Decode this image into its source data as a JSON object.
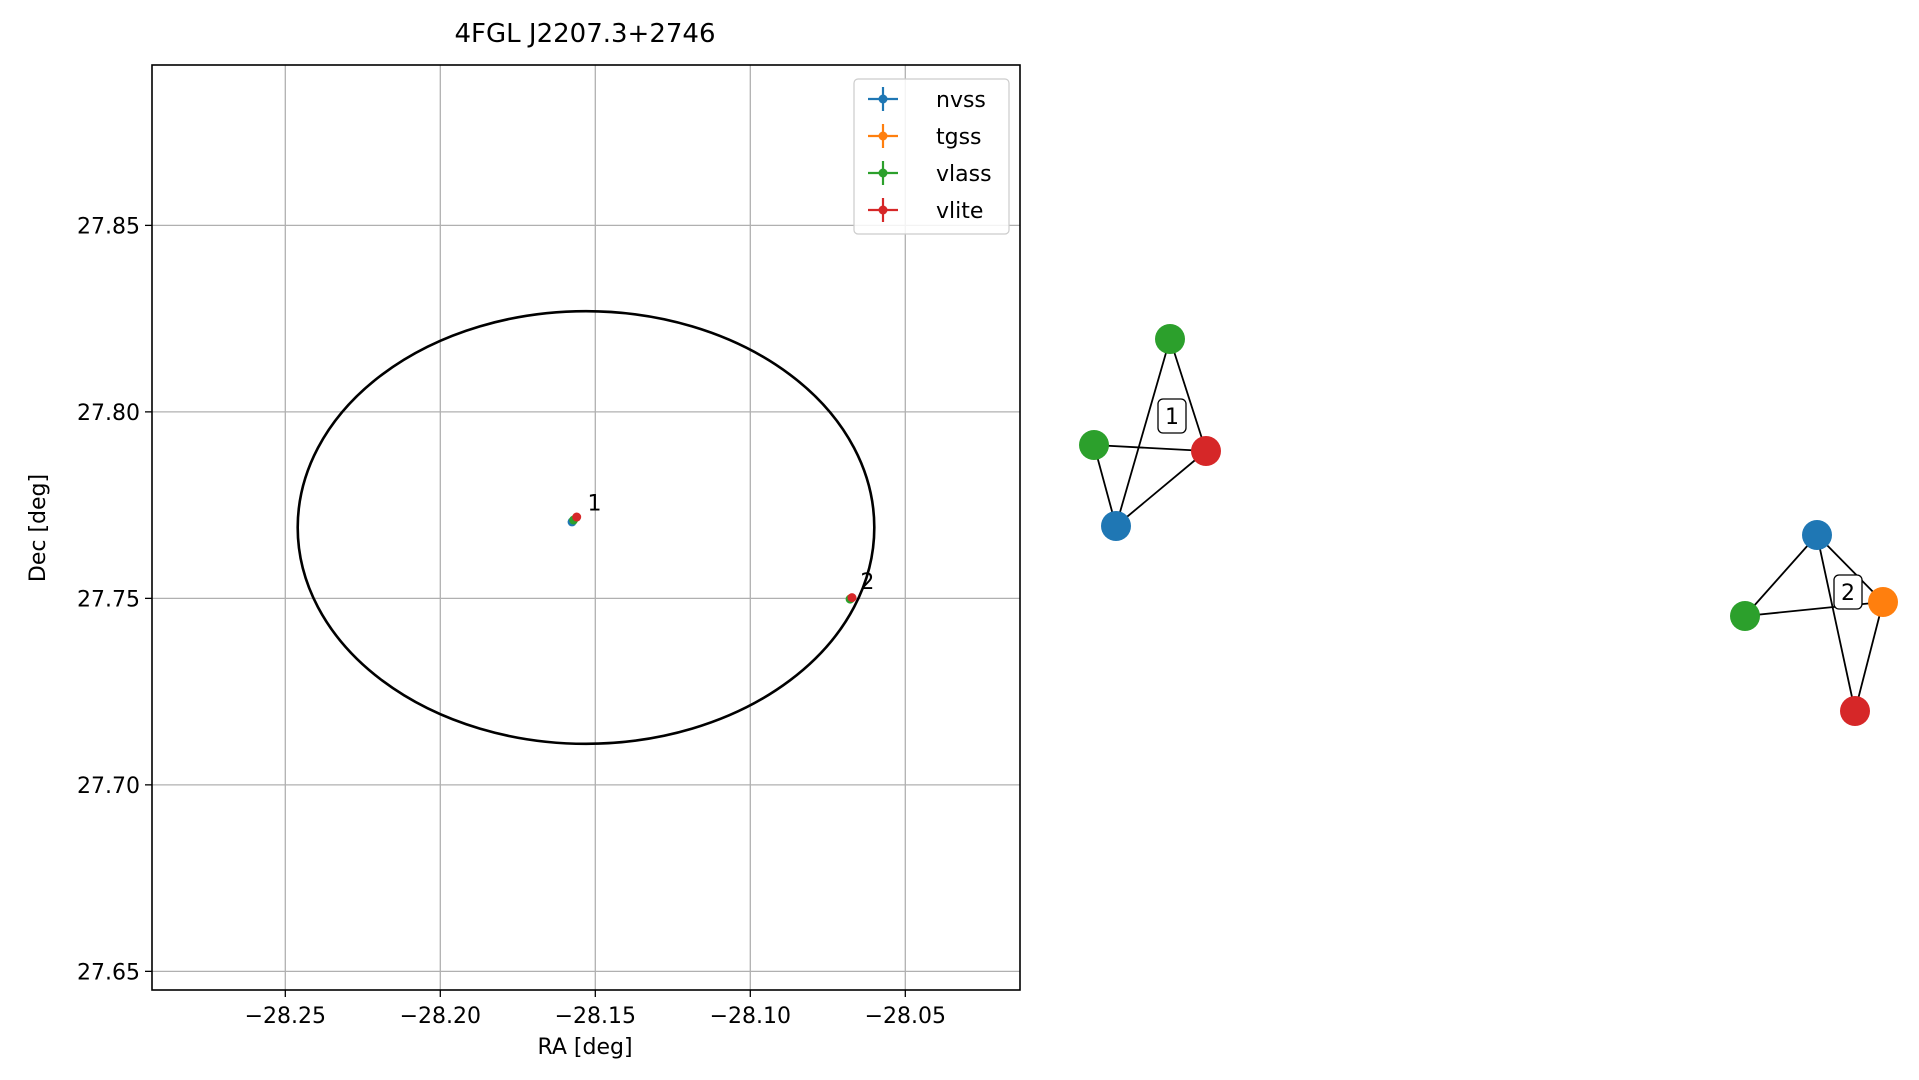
{
  "chart_data": {
    "type": "scatter",
    "title": "4FGL J2207.3+2746",
    "xlabel": "RA [deg]",
    "ylabel": "Dec [deg]",
    "xlim": [
      -28.293,
      -28.013
    ],
    "ylim": [
      27.645,
      27.893
    ],
    "x_ticks": [
      -28.25,
      -28.2,
      -28.15,
      -28.1,
      -28.05
    ],
    "x_tick_labels": [
      "−28.25",
      "−28.20",
      "−28.15",
      "−28.10",
      "−28.05"
    ],
    "y_ticks": [
      27.65,
      27.7,
      27.75,
      27.8,
      27.85
    ],
    "y_tick_labels": [
      "27.65",
      "27.70",
      "27.75",
      "27.80",
      "27.85"
    ],
    "grid": true,
    "legend_position": "top-right",
    "series": [
      {
        "name": "nvss",
        "color": "#1f77b4",
        "points": [
          {
            "x": -28.1575,
            "y": 27.7705
          }
        ]
      },
      {
        "name": "tgss",
        "color": "#ff7f0e",
        "points": [
          {
            "x": -28.0675,
            "y": 27.75
          }
        ]
      },
      {
        "name": "vlass",
        "color": "#2ca02c",
        "points": [
          {
            "x": -28.157,
            "y": 27.771
          },
          {
            "x": -28.0678,
            "y": 27.7498
          }
        ]
      },
      {
        "name": "vlite",
        "color": "#d62728",
        "points": [
          {
            "x": -28.156,
            "y": 27.7718
          },
          {
            "x": -28.0672,
            "y": 27.7502
          }
        ]
      }
    ],
    "ellipse": {
      "center": [
        -28.153,
        27.769
      ],
      "ra_halfwidth": 0.093,
      "dec_halfheight": 0.058,
      "color": "#000000"
    },
    "annotations": [
      {
        "text": "1",
        "x": -28.1525,
        "y": 27.7735
      },
      {
        "text": "2",
        "x": -28.0645,
        "y": 27.7525
      }
    ]
  },
  "graphs": [
    {
      "label": "1",
      "nodes": [
        {
          "id": "a",
          "color": "#2ca02c"
        },
        {
          "id": "b",
          "color": "#2ca02c"
        },
        {
          "id": "c",
          "color": "#d62728"
        },
        {
          "id": "d",
          "color": "#1f77b4"
        }
      ],
      "edges": [
        [
          "a",
          "c"
        ],
        [
          "a",
          "d"
        ],
        [
          "b",
          "c"
        ],
        [
          "b",
          "d"
        ],
        [
          "c",
          "d"
        ]
      ]
    },
    {
      "label": "2",
      "nodes": [
        {
          "id": "a",
          "color": "#1f77b4"
        },
        {
          "id": "b",
          "color": "#ff7f0e"
        },
        {
          "id": "c",
          "color": "#2ca02c"
        },
        {
          "id": "d",
          "color": "#d62728"
        }
      ],
      "edges": [
        [
          "a",
          "c"
        ],
        [
          "a",
          "b"
        ],
        [
          "a",
          "d"
        ],
        [
          "c",
          "b"
        ],
        [
          "b",
          "d"
        ]
      ]
    }
  ]
}
